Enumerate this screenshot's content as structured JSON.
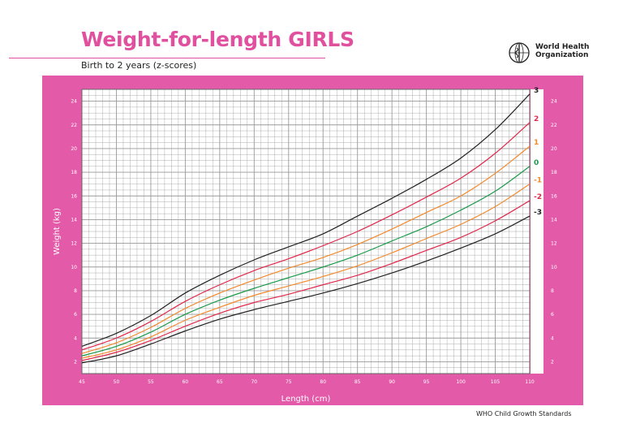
{
  "header": {
    "title": "Weight-for-length GIRLS",
    "subtitle": "Birth to 2 years (z-scores)",
    "org_line1": "World Health",
    "org_line2": "Organization",
    "footer": "WHO Child Growth Standards"
  },
  "colors": {
    "brand": "#e0509f",
    "panel": "#e35aa8",
    "grid": "#9a9a9a",
    "plot_bg": "#ffffff"
  },
  "chart_data": {
    "type": "line",
    "title": "Weight-for-length GIRLS",
    "subtitle": "Birth to 2 years (z-scores)",
    "xlabel": "Length (cm)",
    "ylabel": "Weight (kg)",
    "xlim": [
      45,
      110
    ],
    "ylim": [
      1,
      25
    ],
    "grid": true,
    "x_ticks": [
      45,
      50,
      55,
      60,
      65,
      70,
      75,
      80,
      85,
      90,
      95,
      100,
      105,
      110
    ],
    "y_ticks": [
      2,
      4,
      6,
      8,
      10,
      12,
      14,
      16,
      18,
      20,
      22,
      24
    ],
    "x": [
      45,
      50,
      55,
      60,
      65,
      70,
      75,
      80,
      85,
      90,
      95,
      100,
      105,
      110
    ],
    "series": [
      {
        "name": "3",
        "color": "#222222",
        "values": [
          3.3,
          4.4,
          5.9,
          7.8,
          9.3,
          10.6,
          11.7,
          12.8,
          14.3,
          15.8,
          17.4,
          19.2,
          21.6,
          24.6
        ]
      },
      {
        "name": "2",
        "color": "#e0284a",
        "values": [
          3.0,
          4.0,
          5.4,
          7.1,
          8.5,
          9.7,
          10.7,
          11.8,
          13.0,
          14.4,
          15.9,
          17.5,
          19.6,
          22.2
        ]
      },
      {
        "name": "1",
        "color": "#f28a2e",
        "values": [
          2.7,
          3.6,
          4.9,
          6.5,
          7.8,
          8.9,
          9.9,
          10.8,
          11.9,
          13.2,
          14.6,
          16.0,
          17.9,
          20.2
        ]
      },
      {
        "name": "0",
        "color": "#1a9a4a",
        "values": [
          2.5,
          3.3,
          4.5,
          6.0,
          7.2,
          8.2,
          9.1,
          10.0,
          11.0,
          12.2,
          13.4,
          14.8,
          16.4,
          18.5
        ]
      },
      {
        "name": "-1",
        "color": "#f28a2e",
        "values": [
          2.3,
          3.0,
          4.1,
          5.5,
          6.6,
          7.6,
          8.4,
          9.2,
          10.1,
          11.2,
          12.4,
          13.6,
          15.1,
          17.0
        ]
      },
      {
        "name": "-2",
        "color": "#e0284a",
        "values": [
          2.1,
          2.8,
          3.8,
          5.0,
          6.1,
          7.0,
          7.7,
          8.5,
          9.3,
          10.3,
          11.4,
          12.5,
          13.9,
          15.6
        ]
      },
      {
        "name": "-3",
        "color": "#222222",
        "values": [
          1.9,
          2.5,
          3.5,
          4.6,
          5.6,
          6.4,
          7.1,
          7.8,
          8.6,
          9.5,
          10.5,
          11.6,
          12.8,
          14.3
        ]
      }
    ]
  }
}
